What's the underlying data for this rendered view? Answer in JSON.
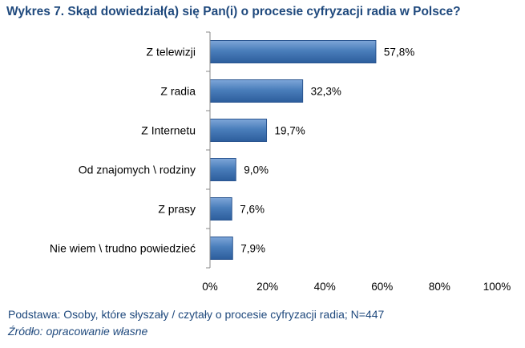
{
  "title": "Wykres 7. Skąd dowiedział(a) się Pan(i) o procesie cyfryzacji radia w Polsce?",
  "footer": {
    "note": "Podstawa: Osoby, które słyszały / czytały o procesie cyfryzacji radia; N=447",
    "source": "Źródło: opracowanie własne"
  },
  "colors": {
    "title": "#1f497d",
    "bar_top": "#7fa6d8",
    "bar_mid": "#4a7ebb",
    "bar_bottom": "#2c5d9c",
    "bar_stroke": "#2a5590",
    "axis": "#888888"
  },
  "chart_data": {
    "type": "bar",
    "orientation": "horizontal",
    "categories": [
      "Z telewizji",
      "Z radia",
      "Z Internetu",
      "Od znajomych \\ rodziny",
      "Z prasy",
      "Nie wiem \\ trudno powiedzieć"
    ],
    "values": [
      57.8,
      32.3,
      19.7,
      9.0,
      7.6,
      7.9
    ],
    "value_labels": [
      "57,8%",
      "32,3%",
      "19,7%",
      "9,0%",
      "7,6%",
      "7,9%"
    ],
    "xlim": [
      0,
      100
    ],
    "xticks": [
      0,
      20,
      40,
      60,
      80,
      100
    ],
    "xtick_labels": [
      "0%",
      "20%",
      "40%",
      "60%",
      "80%",
      "100%"
    ],
    "grid": false,
    "legend": "none"
  }
}
